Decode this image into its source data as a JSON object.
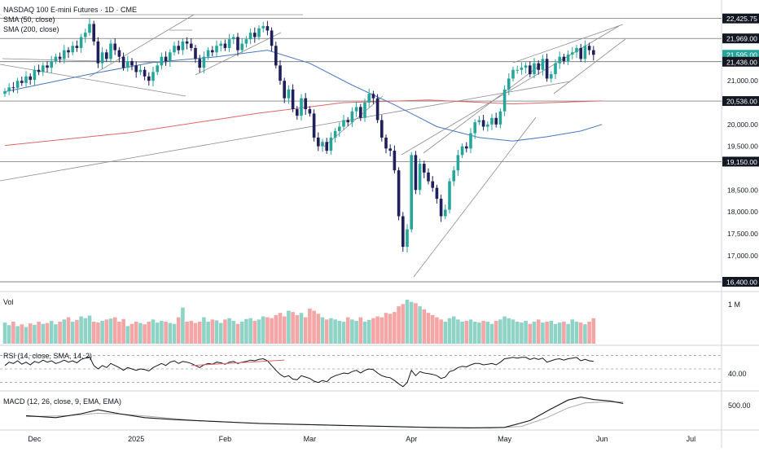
{
  "header": {
    "title": "NASDAQ 100 E-mini Futures · 1D · CME",
    "sma50_label": "SMA (50, close)",
    "sma200_label": "SMA (200, close)"
  },
  "volume_panel": {
    "label": "Vol",
    "axis_label": "1 M"
  },
  "rsi_panel": {
    "label": "RSI (14, close, SMA, 14, 2)",
    "axis_label": "40.00"
  },
  "macd_panel": {
    "label": "MACD (12, 26, close, 9, EMA, EMA)",
    "axis_label": "500.00"
  },
  "colors": {
    "up": "#26a69a",
    "down": "#1f1f5c",
    "vol_up": "#8fd3c7",
    "vol_down": "#f4a5a5",
    "sma50": "#4a78c2",
    "sma200": "#e06666",
    "trendline": "#8c8c8c",
    "level": "#555555",
    "current_price_bg": "#26a69a"
  },
  "chart_data": {
    "type": "candlestick",
    "title": "NASDAQ 100 E-mini Futures · 1D · CME",
    "x_ticks": [
      {
        "label": "Dec",
        "index": 7
      },
      {
        "label": "2025",
        "index": 31
      },
      {
        "label": "Feb",
        "index": 52
      },
      {
        "label": "Mar",
        "index": 72
      },
      {
        "label": "Apr",
        "index": 96
      },
      {
        "label": "May",
        "index": 118
      },
      {
        "label": "Jun",
        "index": 141
      },
      {
        "label": "Jul",
        "index": 162
      }
    ],
    "y_range": [
      16400,
      22550
    ],
    "price_labels": [
      {
        "value": 22425.75,
        "text": "22,425.75",
        "style": "level"
      },
      {
        "value": 21969,
        "text": "21,969.00",
        "style": "level"
      },
      {
        "value": 21595,
        "text": "21,595.00",
        "style": "current"
      },
      {
        "value": 21436,
        "text": "21,436.00",
        "style": "level"
      },
      {
        "value": 21000,
        "text": "21,000.00",
        "style": "tick"
      },
      {
        "value": 20536,
        "text": "20,536.00",
        "style": "level"
      },
      {
        "value": 20000,
        "text": "20,000.00",
        "style": "tick"
      },
      {
        "value": 19500,
        "text": "19,500.00",
        "style": "tick"
      },
      {
        "value": 19150,
        "text": "19,150.00",
        "style": "level"
      },
      {
        "value": 18500,
        "text": "18,500.00",
        "style": "tick"
      },
      {
        "value": 18000,
        "text": "18,000.00",
        "style": "tick"
      },
      {
        "value": 17500,
        "text": "17,500.00",
        "style": "tick"
      },
      {
        "value": 17000,
        "text": "17,000.00",
        "style": "tick"
      },
      {
        "value": 16400,
        "text": "16,400.00",
        "style": "level"
      }
    ],
    "horizontal_levels": [
      22425.75,
      21969,
      21436,
      20536,
      19150,
      16400
    ],
    "closes": [
      20760,
      20850,
      20840,
      21000,
      20950,
      21100,
      21020,
      21250,
      21200,
      21350,
      21300,
      21450,
      21550,
      21500,
      21700,
      21650,
      21800,
      21750,
      22000,
      22100,
      22300,
      21900,
      21400,
      21650,
      21500,
      21850,
      21700,
      21550,
      21300,
      21450,
      21350,
      21200,
      21250,
      21100,
      21000,
      21200,
      21350,
      21550,
      21450,
      21650,
      21800,
      21700,
      21900,
      21850,
      21750,
      21500,
      21300,
      21550,
      21700,
      21650,
      21800,
      21850,
      21750,
      21950,
      22000,
      21700,
      21850,
      21950,
      22100,
      22000,
      22200,
      22250,
      22150,
      21800,
      21350,
      21000,
      20600,
      20800,
      20350,
      20200,
      20600,
      20350,
      20250,
      19700,
      19500,
      19600,
      19400,
      19700,
      19850,
      19950,
      20100,
      20050,
      20300,
      20400,
      20150,
      20500,
      20700,
      20600,
      20100,
      19700,
      19450,
      19400,
      18950,
      17900,
      17200,
      17600,
      19300,
      18500,
      19100,
      18900,
      18700,
      18550,
      18300,
      17900,
      18050,
      18700,
      18950,
      19300,
      19500,
      19450,
      19800,
      20050,
      20100,
      19950,
      20000,
      20150,
      20000,
      20300,
      20800,
      21050,
      21250,
      21250,
      21300,
      21350,
      21150,
      21400,
      21250,
      21500,
      21050,
      21150,
      21400,
      21550,
      21450,
      21600,
      21650,
      21750,
      21500,
      21800,
      21700,
      21595
    ],
    "sma50": {
      "start_index": 0,
      "values_by_anchor": [
        [
          0,
          20750
        ],
        [
          20,
          21150
        ],
        [
          35,
          21420
        ],
        [
          50,
          21550
        ],
        [
          62,
          21700
        ],
        [
          72,
          21400
        ],
        [
          82,
          20900
        ],
        [
          92,
          20450
        ],
        [
          102,
          19950
        ],
        [
          112,
          19700
        ],
        [
          120,
          19620
        ],
        [
          128,
          19720
        ],
        [
          136,
          19850
        ],
        [
          141,
          20000
        ]
      ]
    },
    "sma200": {
      "values_by_anchor": [
        [
          0,
          19520
        ],
        [
          30,
          19820
        ],
        [
          60,
          20260
        ],
        [
          80,
          20500
        ],
        [
          100,
          20560
        ],
        [
          120,
          20470
        ],
        [
          141,
          20540
        ]
      ]
    },
    "volume_max": 1000000,
    "volume": [
      0.48,
      0.42,
      0.5,
      0.4,
      0.44,
      0.38,
      0.46,
      0.43,
      0.5,
      0.45,
      0.47,
      0.52,
      0.44,
      0.5,
      0.55,
      0.6,
      0.5,
      0.54,
      0.62,
      0.58,
      0.64,
      0.5,
      0.48,
      0.52,
      0.55,
      0.57,
      0.6,
      0.5,
      0.56,
      0.4,
      0.45,
      0.5,
      0.47,
      0.44,
      0.5,
      0.55,
      0.48,
      0.52,
      0.5,
      0.47,
      0.45,
      0.6,
      0.82,
      0.5,
      0.52,
      0.47,
      0.5,
      0.6,
      0.5,
      0.55,
      0.53,
      0.47,
      0.55,
      0.58,
      0.52,
      0.45,
      0.5,
      0.56,
      0.58,
      0.52,
      0.55,
      0.62,
      0.6,
      0.58,
      0.65,
      0.7,
      0.62,
      0.75,
      0.72,
      0.65,
      0.7,
      0.6,
      0.8,
      0.75,
      0.68,
      0.6,
      0.55,
      0.58,
      0.55,
      0.52,
      0.5,
      0.6,
      0.55,
      0.52,
      0.6,
      0.5,
      0.54,
      0.58,
      0.62,
      0.6,
      0.7,
      0.68,
      0.72,
      0.85,
      0.9,
      1.0,
      0.95,
      0.92,
      0.85,
      0.78,
      0.7,
      0.65,
      0.6,
      0.55,
      0.5,
      0.58,
      0.62,
      0.55,
      0.5,
      0.52,
      0.55,
      0.5,
      0.48,
      0.52,
      0.5,
      0.45,
      0.52,
      0.55,
      0.62,
      0.58,
      0.55,
      0.5,
      0.48,
      0.52,
      0.45,
      0.5,
      0.55,
      0.48,
      0.5,
      0.52,
      0.45,
      0.48,
      0.5,
      0.45,
      0.55,
      0.5,
      0.48,
      0.44,
      0.5,
      0.58
    ],
    "rsi": [
      55,
      60,
      58,
      62,
      57,
      60,
      56,
      61,
      59,
      63,
      60,
      62,
      58,
      60,
      63,
      60,
      62,
      59,
      64,
      66,
      68,
      55,
      50,
      55,
      52,
      58,
      55,
      52,
      48,
      52,
      50,
      48,
      50,
      49,
      47,
      52,
      55,
      58,
      55,
      60,
      62,
      58,
      61,
      60,
      58,
      55,
      52,
      56,
      58,
      57,
      60,
      59,
      57,
      60,
      61,
      58,
      60,
      61,
      63,
      62,
      64,
      65,
      62,
      55,
      48,
      42,
      38,
      40,
      35,
      34,
      40,
      38,
      36,
      32,
      30,
      33,
      31,
      37,
      40,
      42,
      44,
      43,
      46,
      48,
      44,
      48,
      50,
      49,
      44,
      40,
      38,
      37,
      33,
      28,
      24,
      30,
      48,
      40,
      46,
      44,
      43,
      42,
      40,
      36,
      38,
      46,
      48,
      52,
      54,
      53,
      56,
      58,
      58,
      56,
      57,
      58,
      56,
      60,
      65,
      66,
      67,
      66,
      67,
      67,
      64,
      66,
      64,
      66,
      60,
      62,
      64,
      65,
      63,
      65,
      66,
      67,
      62,
      64,
      62,
      61
    ],
    "rsi_sma_segment": {
      "from_index": 44,
      "to_index": 66,
      "from_value": 55,
      "to_value": 63
    },
    "rsi_range": [
      20,
      80
    ],
    "macd": {
      "line_anchors": [
        [
          5,
          380
        ],
        [
          12,
          360
        ],
        [
          18,
          400
        ],
        [
          22,
          440
        ],
        [
          27,
          400
        ],
        [
          33,
          360
        ],
        [
          40,
          340
        ],
        [
          50,
          320
        ],
        [
          60,
          300
        ],
        [
          70,
          290
        ],
        [
          80,
          280
        ],
        [
          90,
          270
        ],
        [
          100,
          260
        ],
        [
          110,
          255
        ],
        [
          118,
          260
        ],
        [
          124,
          330
        ],
        [
          129,
          450
        ],
        [
          133,
          540
        ],
        [
          136,
          570
        ],
        [
          139,
          545
        ],
        [
          143,
          530
        ],
        [
          146,
          505
        ]
      ],
      "signal_anchors": [
        [
          5,
          370
        ],
        [
          15,
          380
        ],
        [
          22,
          405
        ],
        [
          28,
          395
        ],
        [
          35,
          370
        ],
        [
          45,
          330
        ],
        [
          55,
          310
        ],
        [
          70,
          290
        ],
        [
          85,
          275
        ],
        [
          100,
          262
        ],
        [
          115,
          255
        ],
        [
          122,
          270
        ],
        [
          128,
          360
        ],
        [
          133,
          460
        ],
        [
          137,
          510
        ],
        [
          141,
          520
        ],
        [
          146,
          520
        ]
      ],
      "range": [
        250,
        600
      ]
    }
  }
}
